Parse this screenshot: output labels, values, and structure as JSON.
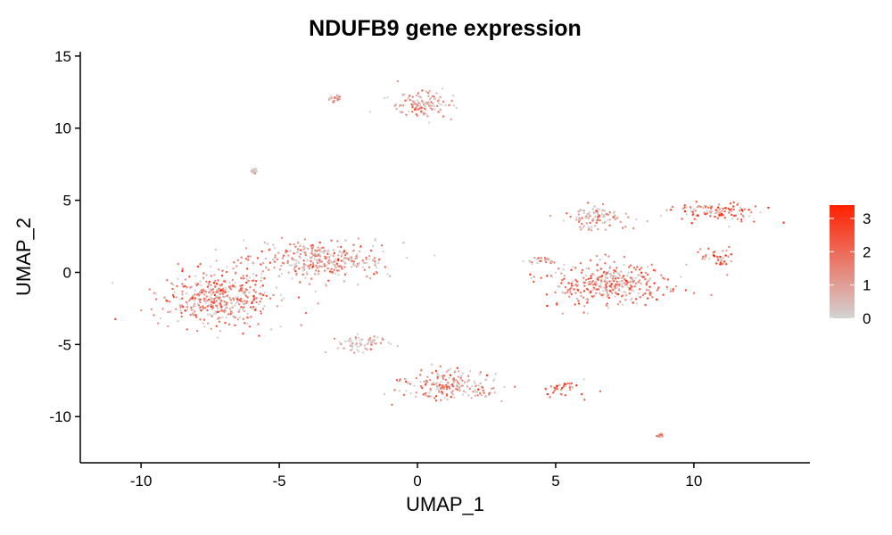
{
  "chart_data": {
    "type": "scatter",
    "title": "NDUFB9 gene expression",
    "xlabel": "UMAP_1",
    "ylabel": "UMAP_2",
    "xlim": [
      -12.2,
      14.2
    ],
    "ylim": [
      -13.2,
      15.3
    ],
    "xticks": [
      -10,
      -5,
      0,
      5,
      10
    ],
    "yticks": [
      -10,
      -5,
      0,
      5,
      10,
      15
    ],
    "grid": false,
    "legend": {
      "placement": "right",
      "type": "colorbar",
      "min": 0,
      "max": 3.4,
      "ticks": [
        0,
        1,
        2,
        3
      ],
      "low_color": "#d3d3d3",
      "high_color": "#ff2000"
    },
    "clusters": [
      {
        "center": [
          -7.2,
          -1.8
        ],
        "spread": [
          2.0,
          1.7
        ],
        "level": 1.6
      },
      {
        "center": [
          -3.5,
          0.8
        ],
        "spread": [
          2.2,
          1.2
        ],
        "level": 1.3
      },
      {
        "center": [
          0.1,
          11.7
        ],
        "spread": [
          1.1,
          0.9
        ],
        "level": 1.0
      },
      {
        "center": [
          -3.0,
          12.0
        ],
        "spread": [
          0.25,
          0.25
        ],
        "level": 1.1
      },
      {
        "center": [
          -5.9,
          7.0
        ],
        "spread": [
          0.1,
          0.15
        ],
        "level": 0.3
      },
      {
        "center": [
          7.0,
          -0.8
        ],
        "spread": [
          2.0,
          1.4
        ],
        "level": 1.8
      },
      {
        "center": [
          6.5,
          3.8
        ],
        "spread": [
          1.0,
          0.8
        ],
        "level": 1.0
      },
      {
        "center": [
          10.8,
          4.2
        ],
        "spread": [
          1.4,
          0.6
        ],
        "level": 2.2
      },
      {
        "center": [
          10.9,
          1.0
        ],
        "spread": [
          0.6,
          0.5
        ],
        "level": 2.0
      },
      {
        "center": [
          1.2,
          -7.8
        ],
        "spread": [
          1.7,
          0.9
        ],
        "level": 1.4
      },
      {
        "center": [
          -2.0,
          -5.0
        ],
        "spread": [
          1.0,
          0.5
        ],
        "level": 0.5
      },
      {
        "center": [
          5.2,
          -8.0
        ],
        "spread": [
          0.6,
          0.5
        ],
        "level": 2.0
      },
      {
        "center": [
          8.8,
          -11.3
        ],
        "spread": [
          0.1,
          0.1
        ],
        "level": 1.5
      },
      {
        "center": [
          4.5,
          0.8
        ],
        "spread": [
          0.6,
          0.3
        ],
        "level": 1.2
      }
    ]
  }
}
